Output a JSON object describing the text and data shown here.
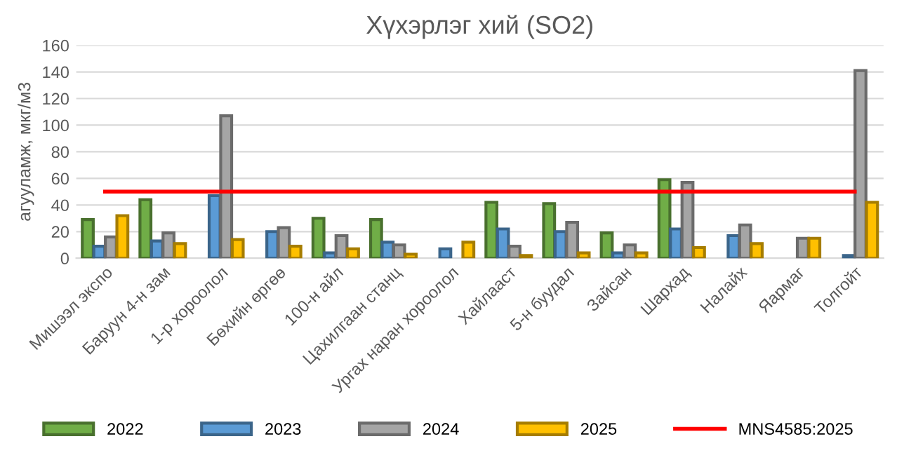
{
  "chart_data": {
    "type": "bar",
    "title": "Хүхэрлэг хий (SO2)",
    "ylabel": "агууламж, мкг/м3",
    "categories": [
      "Мишээл экспо",
      "Баруун 4-н зам",
      "1-р хороолол",
      "Бөхийн өргөө",
      "100-н айл",
      "Цахилгаан станц",
      "Ургах наран хороолол",
      "Хайлааст",
      "5-н буудал",
      "Зайсан",
      "Шархад",
      "Налайх",
      "Яармаг",
      "Толгойт"
    ],
    "series": [
      {
        "name": "2022",
        "color": "#70ad47",
        "values": [
          29,
          44,
          null,
          null,
          30,
          29,
          null,
          42,
          41,
          19,
          59,
          null,
          null,
          null
        ]
      },
      {
        "name": "2023",
        "color": "#5b9bd5",
        "values": [
          9,
          13,
          47,
          20,
          4,
          12,
          7,
          22,
          20,
          4,
          22,
          17,
          null,
          2
        ]
      },
      {
        "name": "2024",
        "color": "#a5a5a5",
        "values": [
          16,
          19,
          107,
          23,
          17,
          10,
          null,
          9,
          27,
          10,
          57,
          25,
          15,
          141
        ]
      },
      {
        "name": "2025",
        "color": "#ffc000",
        "values": [
          32,
          11,
          14,
          9,
          7,
          3,
          12,
          2,
          4,
          4,
          8,
          11,
          15,
          42
        ]
      },
      {
        "name": "MNS4585:2025",
        "type": "line",
        "color": "#ff0000",
        "values": [
          50,
          50,
          50,
          50,
          50,
          50,
          50,
          50,
          50,
          50,
          50,
          50,
          50,
          50
        ]
      }
    ],
    "ylim": [
      0,
      160
    ],
    "yticks": [
      0,
      20,
      40,
      60,
      80,
      100,
      120,
      140,
      160
    ],
    "grid": "y",
    "legend": "bottom"
  }
}
